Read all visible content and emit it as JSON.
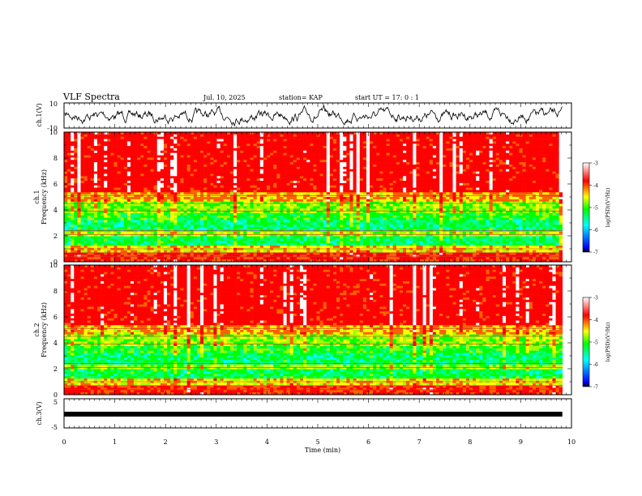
{
  "chart_data": {
    "type": "heatmap",
    "title": "VLF Spectra",
    "date": "Jul. 10, 2025",
    "station": "station= KAP",
    "start_ut": "start UT =   17: 0  : 1",
    "xlabel": "Time (min)",
    "xlim": [
      0,
      10
    ],
    "xticks": [
      "0",
      "1",
      "2",
      "3",
      "4",
      "5",
      "6",
      "7",
      "8",
      "9",
      "10"
    ],
    "data_end_min": 9.82,
    "panels": [
      {
        "id": "ch1-waveform",
        "ylabel": "ch.1(V)",
        "ylim": [
          -10,
          10
        ],
        "yticks": [
          "10",
          "-10"
        ],
        "kind": "waveform"
      },
      {
        "id": "ch1-spectrogram",
        "ylabel": "ch.1",
        "ylabel2": "Frequency (kHz)",
        "ylim": [
          0,
          10
        ],
        "yticks": [
          "0",
          "2",
          "4",
          "6",
          "8",
          "10"
        ],
        "kind": "spectrogram",
        "colorbar": {
          "label": "log(PSD)(V²/Hz)",
          "range": [
            -7,
            -3
          ],
          "ticks": [
            "-3",
            "-4",
            "-5",
            "-6",
            "-7"
          ]
        }
      },
      {
        "id": "ch2-spectrogram",
        "ylabel": "ch.2",
        "ylabel2": "Frequency (kHz)",
        "ylim": [
          0,
          10
        ],
        "yticks": [
          "0",
          "2",
          "4",
          "6",
          "8",
          "10"
        ],
        "kind": "spectrogram",
        "colorbar": {
          "label": "log(PSD)(V²/Hz)",
          "range": [
            -7,
            -3
          ],
          "ticks": [
            "-3",
            "-4",
            "-5",
            "-6",
            "-7"
          ]
        }
      },
      {
        "id": "ch3-waveform",
        "ylabel": "ch.3(V)",
        "ylim": [
          -5,
          5
        ],
        "yticks": [
          "5",
          "-5"
        ],
        "kind": "flat",
        "level": 0
      }
    ],
    "colors": {
      "high": "#ff0000",
      "mid": "#ffff00",
      "low": "#00ff00",
      "lower": "#00ffff",
      "lowest": "#0000ff"
    }
  }
}
